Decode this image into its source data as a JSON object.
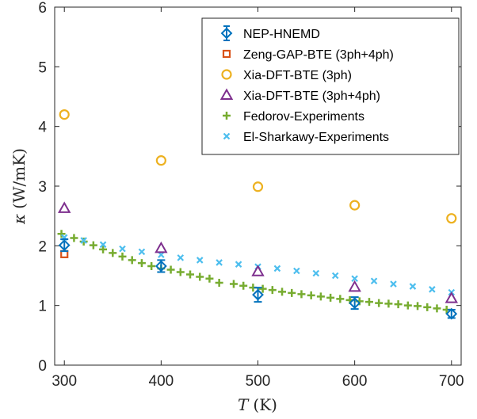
{
  "chart_data": {
    "type": "scatter",
    "xlabel_var": "T",
    "xlabel_unit": "(K)",
    "ylabel_var": "κ",
    "ylabel_unit": "(W/mK)",
    "xlim": [
      290,
      710
    ],
    "ylim": [
      0,
      6
    ],
    "xticks": [
      "300",
      "400",
      "500",
      "600",
      "700"
    ],
    "yticks": [
      "0",
      "1",
      "2",
      "3",
      "4",
      "5",
      "6"
    ],
    "grid": false,
    "legend_position": "top-right",
    "series": [
      {
        "name": "NEP-HNEMD",
        "marker": "diamond-errorbar",
        "color": "#0072BD",
        "x": [
          300,
          400,
          500,
          600,
          700
        ],
        "y": [
          2.01,
          1.66,
          1.18,
          1.04,
          0.86
        ],
        "err": [
          0.1,
          0.1,
          0.12,
          0.1,
          0.07
        ]
      },
      {
        "name": "Zeng-GAP-BTE (3ph+4ph)",
        "marker": "square",
        "color": "#D95319",
        "x": [
          300
        ],
        "y": [
          1.86
        ]
      },
      {
        "name": "Xia-DFT-BTE (3ph)",
        "marker": "circle",
        "color": "#EDB120",
        "x": [
          300,
          400,
          500,
          600,
          700
        ],
        "y": [
          4.2,
          3.43,
          2.99,
          2.68,
          2.46
        ]
      },
      {
        "name": "Xia-DFT-BTE (3ph+4ph)",
        "marker": "triangle",
        "color": "#7E2F8E",
        "x": [
          300,
          400,
          500,
          600,
          700
        ],
        "y": [
          2.63,
          1.96,
          1.57,
          1.31,
          1.12
        ]
      },
      {
        "name": "Fedorov-Experiments",
        "marker": "plus",
        "color": "#77AC30",
        "x": [
          297,
          310,
          320,
          330,
          340,
          350,
          360,
          370,
          380,
          390,
          400,
          410,
          420,
          430,
          440,
          450,
          460,
          475,
          485,
          495,
          505,
          515,
          525,
          535,
          545,
          555,
          565,
          575,
          585,
          595,
          605,
          615,
          625,
          635,
          645,
          655,
          665,
          675,
          685,
          695
        ],
        "y": [
          2.2,
          2.13,
          2.07,
          2.01,
          1.94,
          1.88,
          1.82,
          1.76,
          1.71,
          1.66,
          1.62,
          1.6,
          1.56,
          1.52,
          1.48,
          1.45,
          1.38,
          1.36,
          1.33,
          1.3,
          1.28,
          1.26,
          1.23,
          1.21,
          1.19,
          1.17,
          1.15,
          1.13,
          1.11,
          1.09,
          1.07,
          1.06,
          1.04,
          1.03,
          1.02,
          1.0,
          0.99,
          0.97,
          0.95,
          0.93
        ]
      },
      {
        "name": "El-Sharkawy-Experiments",
        "marker": "x",
        "color": "#4DBEEE",
        "x": [
          300,
          320,
          340,
          360,
          380,
          400,
          420,
          440,
          460,
          480,
          500,
          520,
          540,
          560,
          580,
          600,
          620,
          640,
          660,
          680,
          700
        ],
        "y": [
          2.14,
          2.09,
          2.02,
          1.95,
          1.9,
          1.85,
          1.8,
          1.76,
          1.72,
          1.69,
          1.65,
          1.62,
          1.58,
          1.54,
          1.5,
          1.45,
          1.41,
          1.36,
          1.32,
          1.27,
          1.22
        ]
      }
    ]
  }
}
